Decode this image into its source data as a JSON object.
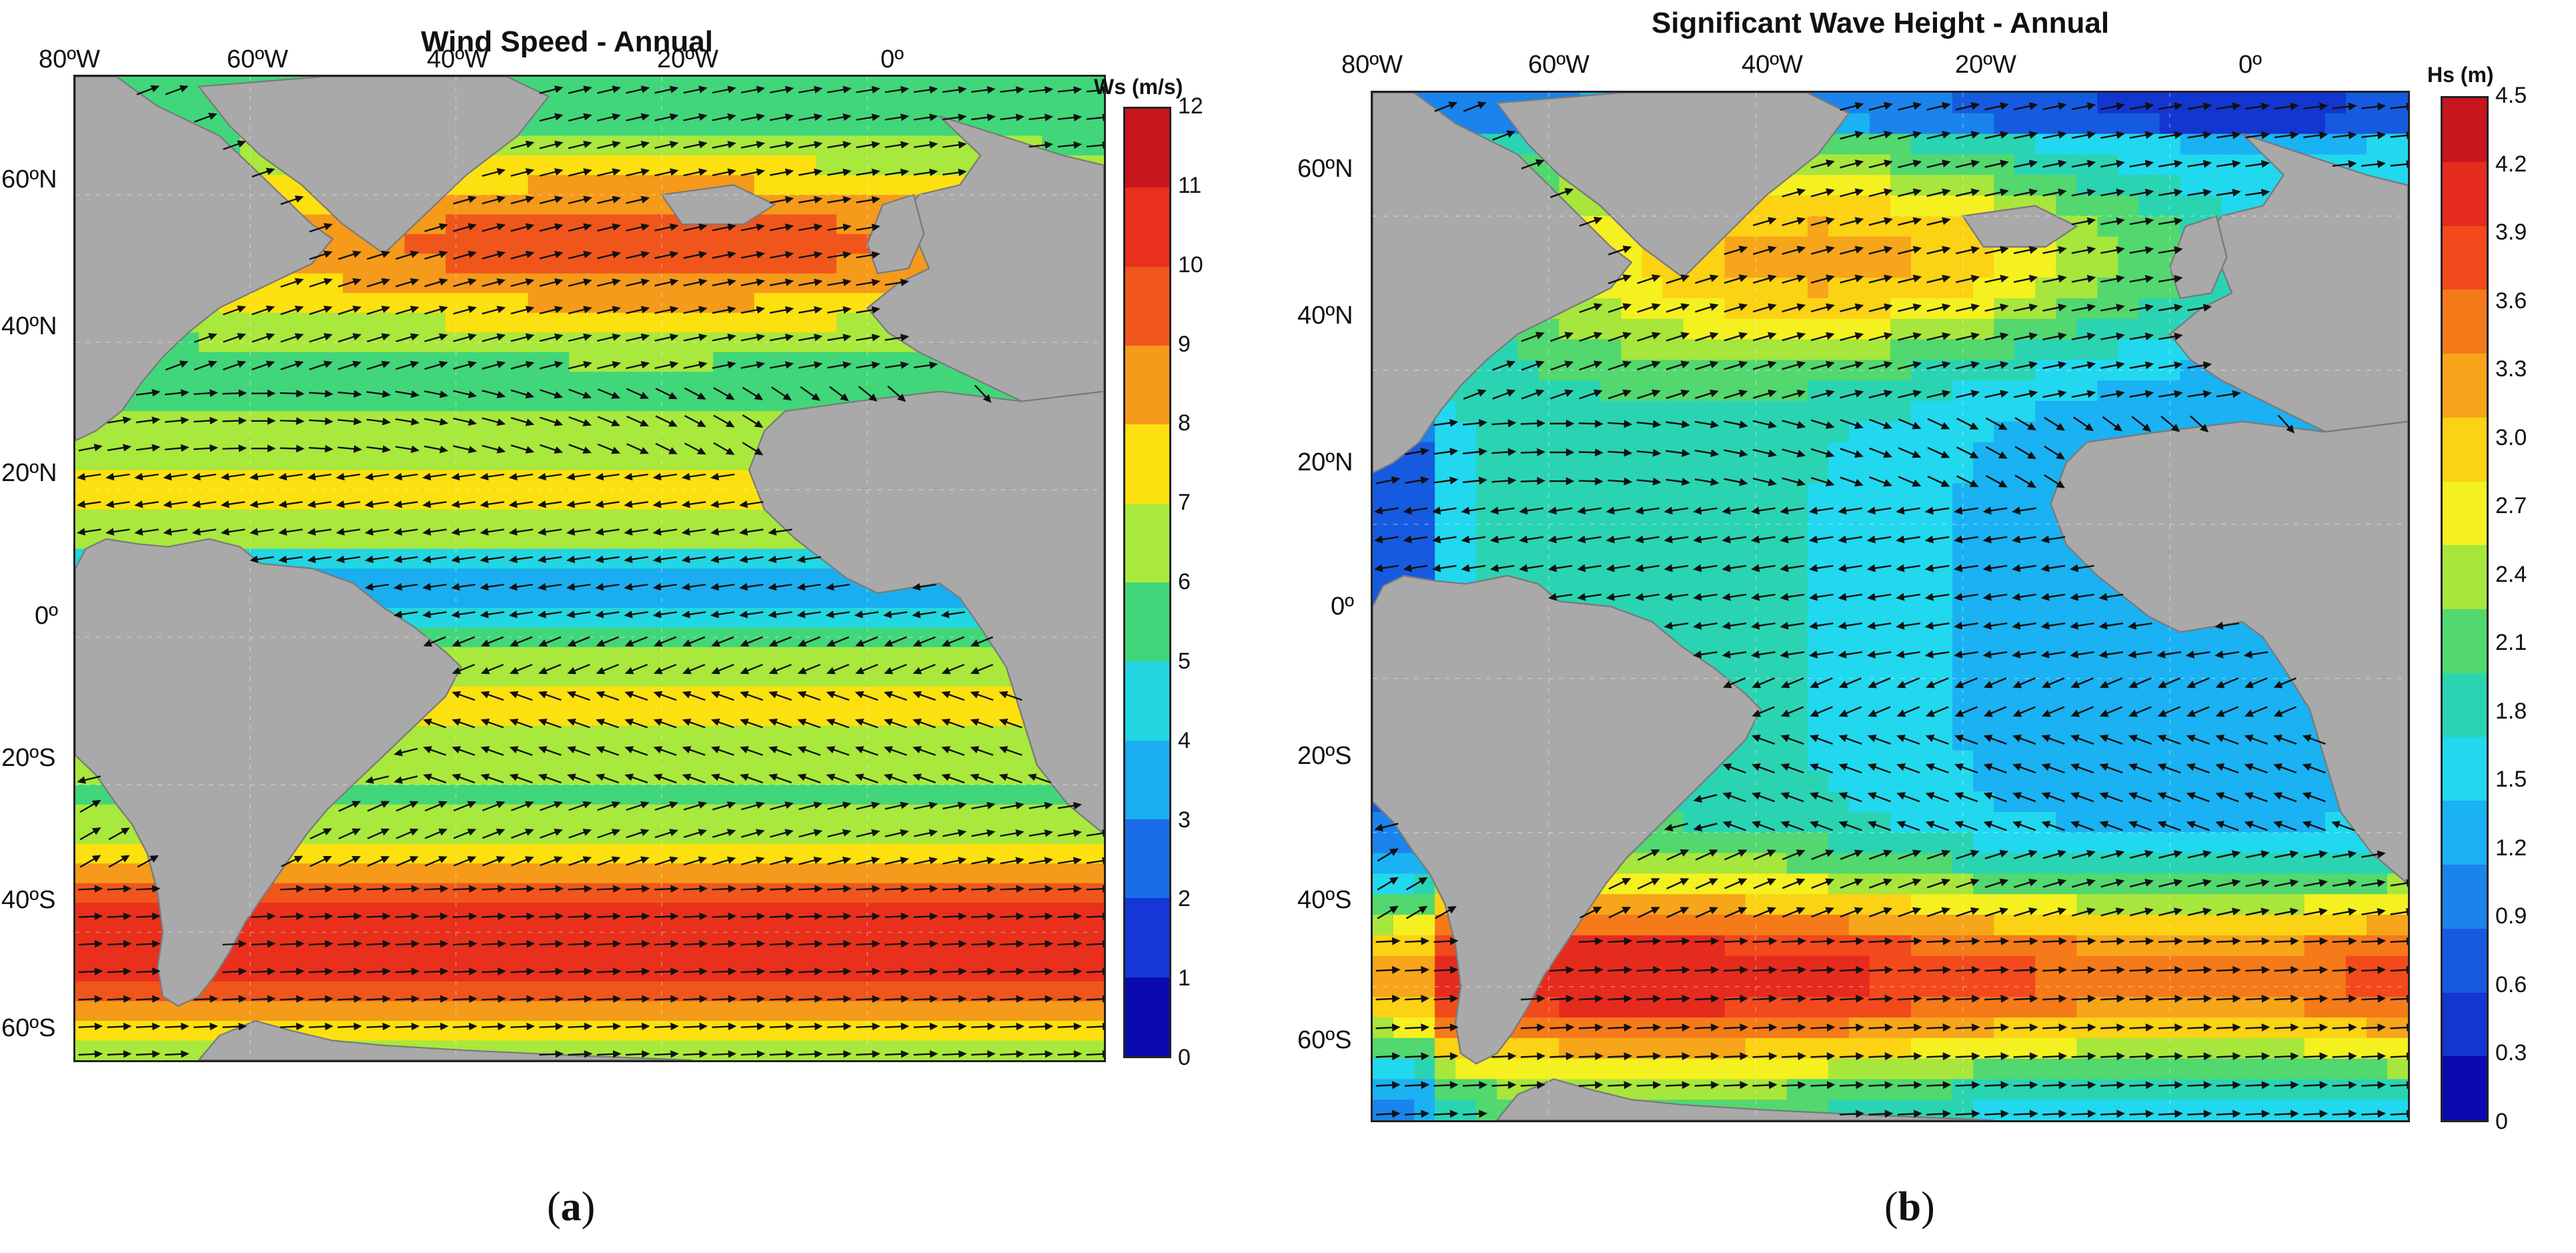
{
  "colors": {
    "land": "#a9a9a9",
    "border": "#7a7a7a",
    "arrow": "#111111"
  },
  "panels": [
    {
      "id": "a",
      "title": "Wind Speed - Annual",
      "label_letter": "a",
      "label_left": "(",
      "label_right": ")",
      "colorbar": {
        "title": "Ws (m/s)",
        "ticks": [
          "12",
          "11",
          "10",
          "9",
          "8",
          "7",
          "6",
          "5",
          "4",
          "3",
          "2",
          "1",
          "0"
        ],
        "colors": [
          "#c8161d",
          "#e8301c",
          "#f0561c",
          "#f59a1a",
          "#fde010",
          "#a9e83c",
          "#41d67a",
          "#22d6e2",
          "#1aaef0",
          "#1a6de8",
          "#1636d8",
          "#0a0ab0"
        ]
      },
      "x_ticks": [
        "80ºW",
        "60ºW",
        "40ºW",
        "20ºW",
        "0º"
      ],
      "y_ticks": [
        "60ºN",
        "40ºN",
        "20ºN",
        "0º",
        "20ºS",
        "40ºS",
        "60ºS"
      ]
    },
    {
      "id": "b",
      "title": "Significant Wave Height - Annual",
      "label_letter": "b",
      "label_left": "(",
      "label_right": ")",
      "colorbar": {
        "title": "Hs (m)",
        "ticks": [
          "4.5",
          "4.2",
          "3.9",
          "3.6",
          "3.3",
          "3.0",
          "2.7",
          "2.4",
          "2.1",
          "1.8",
          "1.5",
          "1.2",
          "0.9",
          "0.6",
          "0.3",
          "0"
        ],
        "colors": [
          "#c8161d",
          "#e52b1e",
          "#f24a1c",
          "#f57a1a",
          "#f7a51a",
          "#fcd214",
          "#f5f020",
          "#a7e63c",
          "#52d86e",
          "#2ad4b2",
          "#22d8ee",
          "#1ab2f2",
          "#1a84ec",
          "#165ae0",
          "#1236cf",
          "#0a0ab0"
        ]
      },
      "x_ticks": [
        "80ºW",
        "60ºW",
        "40ºW",
        "20ºW",
        "0º"
      ],
      "y_ticks": [
        "60ºN",
        "40ºN",
        "20ºN",
        "0º",
        "20ºS",
        "40ºS",
        "60ºS"
      ]
    }
  ]
}
